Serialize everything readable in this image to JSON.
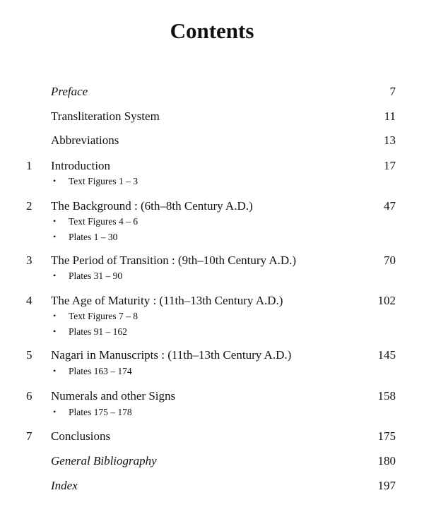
{
  "title": "Contents",
  "entries": [
    {
      "number": "",
      "label": "Preface",
      "italic": true,
      "page": "7",
      "subs": []
    },
    {
      "number": "",
      "label": "Transliteration System",
      "italic": false,
      "page": "11",
      "subs": []
    },
    {
      "number": "",
      "label": "Abbreviations",
      "italic": false,
      "page": "13",
      "subs": []
    },
    {
      "number": "1",
      "label": "Introduction",
      "italic": false,
      "page": "17",
      "subs": [
        "Text Figures 1 – 3"
      ]
    },
    {
      "number": "2",
      "label": "The Background : (6th–8th Century A.D.)",
      "italic": false,
      "page": "47",
      "subs": [
        "Text Figures 4 – 6",
        "Plates 1 – 30"
      ]
    },
    {
      "number": "3",
      "label": "The Period of Transition : (9th–10th Century A.D.)",
      "italic": false,
      "page": "70",
      "subs": [
        "Plates 31 – 90"
      ]
    },
    {
      "number": "4",
      "label": "The Age of Maturity : (11th–13th Century A.D.)",
      "italic": false,
      "page": "102",
      "subs": [
        "Text Figures 7 – 8",
        "Plates 91 – 162"
      ]
    },
    {
      "number": "5",
      "label": "Nagari in Manuscripts : (11th–13th Century A.D.)",
      "italic": false,
      "page": "145",
      "subs": [
        "Plates 163 – 174"
      ]
    },
    {
      "number": "6",
      "label": "Numerals and other Signs",
      "italic": false,
      "page": "158",
      "subs": [
        "Plates 175 – 178"
      ]
    },
    {
      "number": "7",
      "label": "Conclusions",
      "italic": false,
      "page": "175",
      "subs": []
    },
    {
      "number": "",
      "label": "General Bibliography",
      "italic": true,
      "page": "180",
      "subs": []
    },
    {
      "number": "",
      "label": "Index",
      "italic": true,
      "page": "197",
      "subs": []
    }
  ],
  "bullet": "•"
}
